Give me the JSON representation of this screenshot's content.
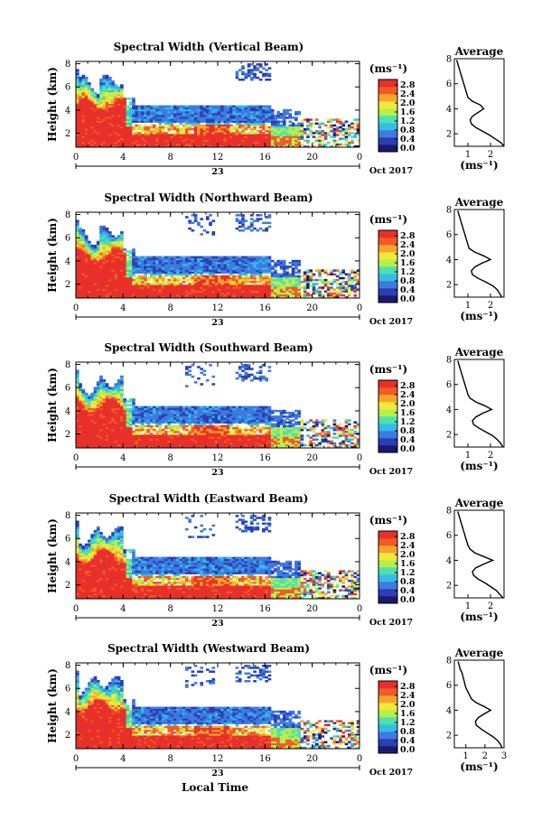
{
  "chart_data": [
    {
      "type": "heatmap",
      "title": "Spectral Width (Vertical Beam)",
      "ylabel": "Height (km)",
      "xticks": [
        "0",
        "4",
        "8",
        "12",
        "16",
        "20",
        "0"
      ],
      "yticks": [
        "2",
        "4",
        "6",
        "8"
      ],
      "date_label": "23",
      "month_label": "Oct 2017",
      "colorbar_unit": "(ms⁻¹)",
      "colorbar_ticks": [
        "2.8",
        "2.4",
        "2.0",
        "1.6",
        "1.2",
        "0.8",
        "0.4",
        "0.0"
      ],
      "xlim": [
        0,
        24
      ],
      "ylim": [
        0.8,
        8.2
      ],
      "avg_title": "Average",
      "avg_xlabel": "(ms⁻¹)",
      "avg_xticks": [
        "1",
        "2"
      ],
      "avg_xlim": [
        0.4,
        2.6
      ],
      "avg_yticks": [
        "2",
        "4",
        "6",
        "8"
      ],
      "avg_ylim": [
        1,
        8
      ],
      "avg_profile": {
        "height": [
          1.0,
          1.3,
          1.6,
          1.9,
          2.2,
          2.5,
          2.8,
          3.1,
          3.4,
          3.7,
          4.0,
          4.3,
          4.6,
          4.9,
          5.2,
          5.5,
          5.8,
          6.1,
          6.4,
          6.7,
          7.0,
          7.3,
          7.6,
          7.9
        ],
        "width": [
          2.6,
          2.45,
          2.2,
          1.95,
          1.65,
          1.35,
          1.15,
          1.1,
          1.2,
          1.45,
          1.7,
          1.55,
          1.2,
          1.0,
          0.95,
          0.9,
          0.85,
          0.8,
          0.75,
          0.7,
          0.65,
          0.6,
          0.55,
          0.5
        ]
      }
    },
    {
      "type": "heatmap",
      "title": "Spectral Width (Northward Beam)",
      "ylabel": "Height (km)",
      "xticks": [
        "0",
        "4",
        "8",
        "12",
        "16",
        "20",
        "0"
      ],
      "yticks": [
        "2",
        "4",
        "6",
        "8"
      ],
      "date_label": "23",
      "month_label": "Oct 2017",
      "colorbar_unit": "(ms⁻¹)",
      "colorbar_ticks": [
        "2.8",
        "2.4",
        "2.0",
        "1.6",
        "1.2",
        "0.8",
        "0.4",
        "0.0"
      ],
      "xlim": [
        0,
        24
      ],
      "ylim": [
        0.8,
        8.2
      ],
      "avg_title": "Average",
      "avg_xlabel": "(ms⁻¹)",
      "avg_xticks": [
        "1",
        "2"
      ],
      "avg_xlim": [
        0.4,
        2.6
      ],
      "avg_yticks": [
        "2",
        "4",
        "6",
        "8"
      ],
      "avg_ylim": [
        1,
        8
      ],
      "avg_profile": {
        "height": [
          1.0,
          1.3,
          1.6,
          1.9,
          2.2,
          2.5,
          2.8,
          3.1,
          3.4,
          3.7,
          4.0,
          4.3,
          4.6,
          4.9,
          5.2,
          5.5,
          5.8,
          6.1,
          6.4,
          6.7,
          7.0,
          7.3,
          7.6,
          7.9
        ],
        "width": [
          2.5,
          2.4,
          2.3,
          2.1,
          1.8,
          1.45,
          1.2,
          1.15,
          1.3,
          1.6,
          2.0,
          1.7,
          1.3,
          1.05,
          1.0,
          0.95,
          0.9,
          0.85,
          0.8,
          0.75,
          0.7,
          0.65,
          0.6,
          0.55
        ]
      }
    },
    {
      "type": "heatmap",
      "title": "Spectral Width (Southward Beam)",
      "ylabel": "Height (km)",
      "xticks": [
        "0",
        "4",
        "8",
        "12",
        "16",
        "20",
        "0"
      ],
      "yticks": [
        "2",
        "4",
        "6",
        "8"
      ],
      "date_label": "23",
      "month_label": "Oct 2017",
      "colorbar_unit": "(ms⁻¹)",
      "colorbar_ticks": [
        "2.8",
        "2.4",
        "2.0",
        "1.6",
        "1.2",
        "0.8",
        "0.4",
        "0.0"
      ],
      "xlim": [
        0,
        24
      ],
      "ylim": [
        0.8,
        8.2
      ],
      "avg_title": "Average",
      "avg_xlabel": "(ms⁻¹)",
      "avg_xticks": [
        "1",
        "2"
      ],
      "avg_xlim": [
        0.4,
        2.6
      ],
      "avg_yticks": [
        "2",
        "4",
        "6",
        "8"
      ],
      "avg_ylim": [
        1,
        8
      ],
      "avg_profile": {
        "height": [
          1.0,
          1.3,
          1.6,
          1.9,
          2.2,
          2.5,
          2.8,
          3.1,
          3.4,
          3.7,
          4.0,
          4.3,
          4.6,
          4.9,
          5.2,
          5.5,
          5.8,
          6.1,
          6.4,
          6.7,
          7.0,
          7.3,
          7.6,
          7.9
        ],
        "width": [
          2.55,
          2.45,
          2.3,
          2.1,
          1.8,
          1.5,
          1.25,
          1.2,
          1.35,
          1.65,
          2.05,
          1.75,
          1.35,
          1.1,
          1.0,
          0.95,
          0.9,
          0.85,
          0.8,
          0.75,
          0.7,
          0.65,
          0.6,
          0.55
        ]
      }
    },
    {
      "type": "heatmap",
      "title": "Spectral Width (Eastward Beam)",
      "ylabel": "Height (km)",
      "xticks": [
        "0",
        "4",
        "8",
        "12",
        "16",
        "20",
        "0"
      ],
      "yticks": [
        "2",
        "4",
        "6",
        "8"
      ],
      "date_label": "23",
      "month_label": "Oct 2017",
      "colorbar_unit": "(ms⁻¹)",
      "colorbar_ticks": [
        "2.8",
        "2.4",
        "2.0",
        "1.6",
        "1.2",
        "0.8",
        "0.4",
        "0.0"
      ],
      "xlim": [
        0,
        24
      ],
      "ylim": [
        0.8,
        8.2
      ],
      "avg_title": "Average",
      "avg_xlabel": "(ms⁻¹)",
      "avg_xticks": [
        "1",
        "2"
      ],
      "avg_xlim": [
        0.4,
        2.6
      ],
      "avg_yticks": [
        "2",
        "4",
        "6",
        "8"
      ],
      "avg_ylim": [
        1,
        8
      ],
      "avg_profile": {
        "height": [
          1.0,
          1.3,
          1.6,
          1.9,
          2.2,
          2.5,
          2.8,
          3.1,
          3.4,
          3.7,
          4.0,
          4.3,
          4.6,
          4.9,
          5.2,
          5.5,
          5.8,
          6.1,
          6.4,
          6.7,
          7.0,
          7.3,
          7.6,
          7.9
        ],
        "width": [
          2.55,
          2.4,
          2.25,
          2.0,
          1.75,
          1.45,
          1.25,
          1.2,
          1.35,
          1.7,
          2.1,
          1.7,
          1.3,
          1.1,
          1.0,
          0.95,
          0.9,
          0.85,
          0.8,
          0.75,
          0.7,
          0.65,
          0.6,
          0.55
        ]
      }
    },
    {
      "type": "heatmap",
      "title": "Spectral Width (Westward Beam)",
      "ylabel": "Height (km)",
      "xlabel": "Local Time",
      "xticks": [
        "0",
        "4",
        "8",
        "12",
        "16",
        "20",
        "0"
      ],
      "yticks": [
        "2",
        "4",
        "6",
        "8"
      ],
      "date_label": "23",
      "month_label": "Oct 2017",
      "colorbar_unit": "(ms⁻¹)",
      "colorbar_ticks": [
        "2.8",
        "2.4",
        "2.0",
        "1.6",
        "1.2",
        "0.8",
        "0.4",
        "0.0"
      ],
      "xlim": [
        0,
        24
      ],
      "ylim": [
        0.8,
        8.2
      ],
      "avg_title": "Average",
      "avg_xlabel": "(ms⁻¹)",
      "avg_xticks": [
        "1",
        "2",
        "3"
      ],
      "avg_xlim": [
        0.4,
        3.0
      ],
      "avg_yticks": [
        "2",
        "4",
        "6",
        "8"
      ],
      "avg_ylim": [
        1,
        8
      ],
      "avg_profile": {
        "height": [
          1.0,
          1.3,
          1.6,
          1.9,
          2.2,
          2.5,
          2.8,
          3.1,
          3.4,
          3.7,
          4.0,
          4.3,
          4.6,
          4.9,
          5.2,
          5.5,
          5.8,
          6.1,
          6.4,
          6.7,
          7.0,
          7.3,
          7.6,
          7.9
        ],
        "width": [
          2.9,
          2.8,
          2.65,
          2.4,
          2.1,
          1.8,
          1.55,
          1.5,
          1.65,
          1.95,
          2.3,
          1.95,
          1.55,
          1.3,
          1.2,
          1.1,
          1.0,
          0.95,
          0.9,
          0.85,
          0.8,
          0.7,
          0.65,
          0.6
        ]
      }
    }
  ],
  "colormap": [
    "#1a1a6e",
    "#2b3fb5",
    "#3d7be0",
    "#33bde6",
    "#4fe0b0",
    "#b6f04a",
    "#f4e83a",
    "#f7a52a",
    "#f25a28",
    "#e8302a"
  ]
}
